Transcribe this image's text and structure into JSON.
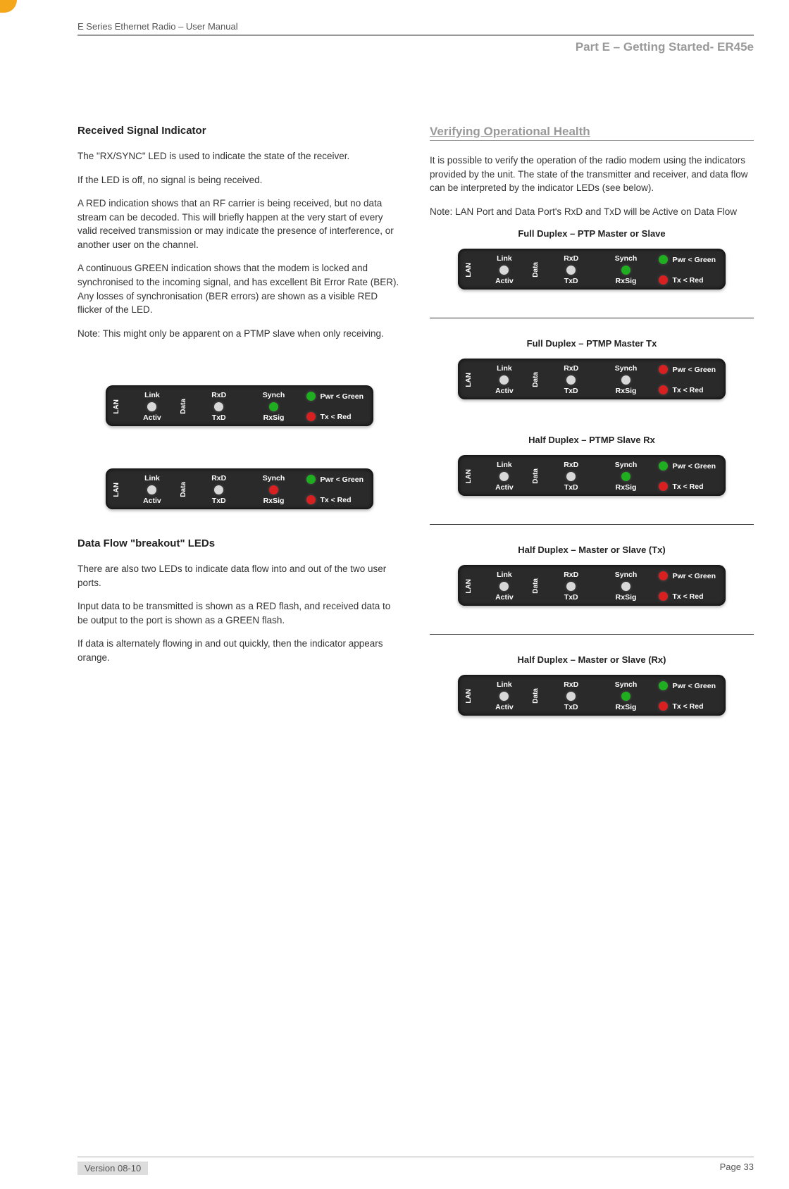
{
  "header": {
    "doc_title": "E Series Ethernet Radio – User Manual",
    "part_title": "Part E –  Getting Started- ER45e"
  },
  "left": {
    "h1": "Received Signal Indicator",
    "p1": "The \"RX/SYNC\" LED is used to indicate the state of the receiver.",
    "p2": "If the LED is off, no signal is being received.",
    "p3": "A RED indication shows that an RF carrier is being received, but no data stream can be decoded. This will briefly happen at the very start of every valid received transmission or may indicate the presence of interference, or another user on the channel.",
    "p4": "A continuous GREEN indication shows that the modem is locked and synchronised to the incoming signal, and has excellent Bit Error Rate (BER). Any losses of synchronisation (BER errors) are shown as a visible RED flicker of the LED.",
    "p5": "Note: This might only be apparent on a PTMP slave when only receiving.",
    "h2": "Data Flow \"breakout\" LEDs",
    "p6": "There are also two LEDs to indicate data flow into and out of the two user ports.",
    "p7": "Input data to be transmitted is shown as a RED flash, and received data to be output to the port is shown as a GREEN flash.",
    "p8": "If data is alternately flowing in and out quickly, then the indicator appears orange."
  },
  "right": {
    "h1": "Verifying Operational Health",
    "p1": "It is possible to verify the operation of the radio modem using the indicators provided by the unit. The state of the transmitter and receiver, and data flow can be interpreted by the indicator LEDs (see below).",
    "p2": "Note: LAN Port and Data Port's RxD and TxD will be Active on Data Flow",
    "caption1": "Full Duplex –  PTP Master or Slave",
    "caption2": "Full Duplex – PTMP Master Tx",
    "caption3": "Half Duplex – PTMP Slave Rx",
    "caption4": "Half Duplex  – Master  or Slave (Tx)",
    "caption5": "Half Duplex – Master or Slave (Rx)"
  },
  "led_labels": {
    "lan": "LAN",
    "link": "Link",
    "activ": "Activ",
    "data": "Data",
    "rxd": "RxD",
    "txd": "TxD",
    "synch": "Synch",
    "rxsig": "RxSig",
    "pwr_green": "Pwr  < Green",
    "tx_red": "Tx   < Red"
  },
  "colors": {
    "off": "#d8d8d8",
    "green": "#1fae1f",
    "red": "#d82020",
    "pwr_green": "#1fae1f",
    "pwr_red": "#d82020",
    "panel_bg": "#2a2a2a"
  },
  "panels": {
    "left_a": {
      "lan": "#d8d8d8",
      "data": "#d8d8d8",
      "synch": "#1fae1f",
      "rxsig": "#1fae1f",
      "pwr": "#1fae1f",
      "tx": "#d82020"
    },
    "left_b": {
      "lan": "#d8d8d8",
      "data": "#d8d8d8",
      "synch": "#d82020",
      "rxsig": "#d8d8d8",
      "pwr": "#1fae1f",
      "tx": "#d82020"
    },
    "r1": {
      "lan": "#d8d8d8",
      "data": "#d8d8d8",
      "synch": "#1fae1f",
      "rxsig": "#1fae1f",
      "pwr": "#1fae1f",
      "tx": "#d82020"
    },
    "r2": {
      "lan": "#d8d8d8",
      "data": "#d8d8d8",
      "synch": "#d8d8d8",
      "rxsig": "#d8d8d8",
      "pwr": "#d82020",
      "tx": "#d82020"
    },
    "r3": {
      "lan": "#d8d8d8",
      "data": "#d8d8d8",
      "synch": "#1fae1f",
      "rxsig": "#1fae1f",
      "pwr": "#1fae1f",
      "tx": "#d82020"
    },
    "r4": {
      "lan": "#d8d8d8",
      "data": "#d8d8d8",
      "synch": "#d8d8d8",
      "rxsig": "#d8d8d8",
      "pwr": "#d82020",
      "tx": "#d82020"
    },
    "r5": {
      "lan": "#d8d8d8",
      "data": "#d8d8d8",
      "synch": "#1fae1f",
      "rxsig": "#1fae1f",
      "pwr": "#1fae1f",
      "tx": "#d82020"
    }
  },
  "footer": {
    "version": "Version 08-10",
    "page": "Page 33"
  }
}
